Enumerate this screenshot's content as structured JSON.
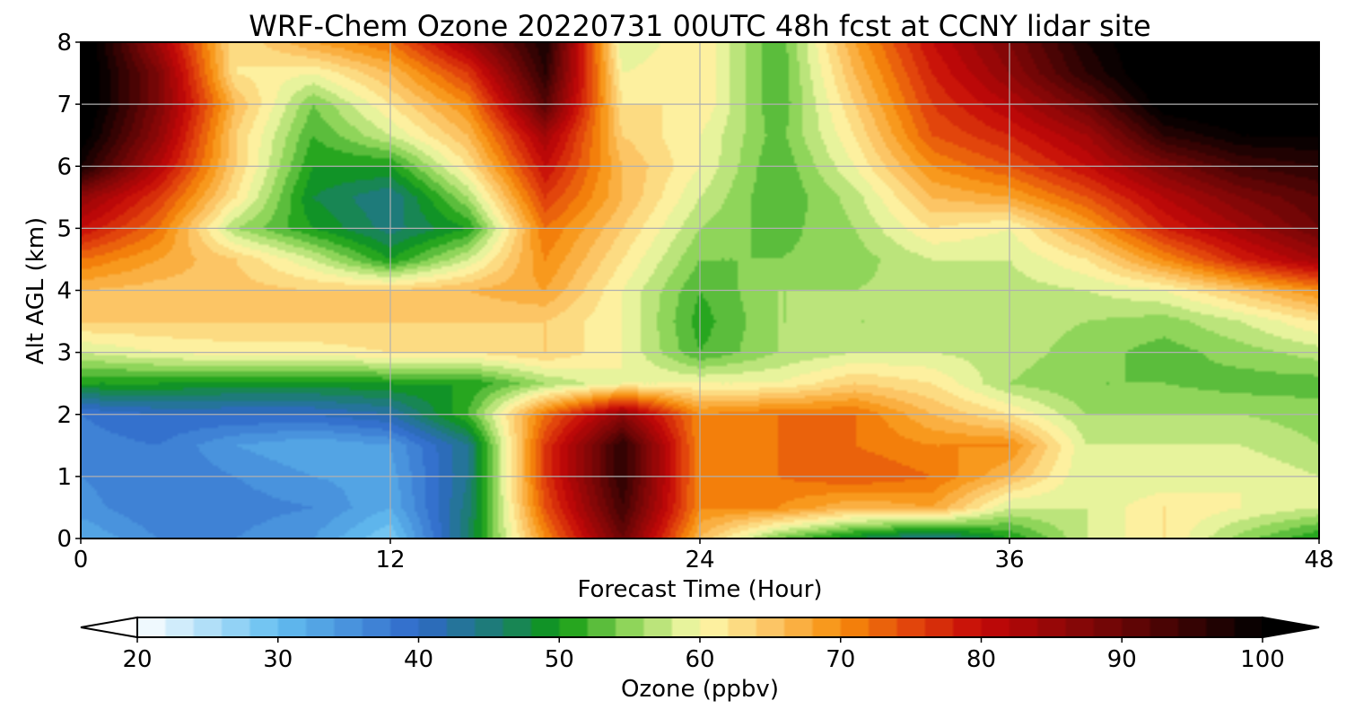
{
  "chart_data": {
    "type": "heatmap",
    "title": "WRF-Chem Ozone  20220731 00UTC 48h fcst at CCNY lidar site",
    "xlabel": "Forecast Time (Hour)",
    "ylabel": "Alt AGL (km)",
    "xlim": [
      0,
      48
    ],
    "ylim": [
      0,
      8
    ],
    "xticks": [
      0,
      12,
      24,
      36,
      48
    ],
    "yticks": [
      0,
      1,
      2,
      3,
      4,
      5,
      6,
      7,
      8
    ],
    "grid": true,
    "x": [
      0,
      3,
      6,
      9,
      12,
      15,
      18,
      21,
      24,
      27,
      30,
      33,
      36,
      39,
      42,
      45,
      48
    ],
    "y": [
      0,
      0.5,
      1,
      1.5,
      2,
      2.5,
      3,
      3.5,
      4,
      4.5,
      5,
      5.5,
      6,
      6.5,
      7,
      7.5,
      8
    ],
    "z": [
      [
        32,
        36,
        36,
        34,
        28,
        46,
        70,
        90,
        66,
        54,
        48,
        43,
        50,
        58,
        62,
        55,
        50
      ],
      [
        35,
        38,
        37,
        36,
        32,
        45,
        74,
        94,
        70,
        70,
        66,
        68,
        58,
        58,
        62,
        60,
        58
      ],
      [
        36,
        38,
        36,
        34,
        33,
        44,
        76,
        96,
        70,
        72,
        74,
        72,
        66,
        58,
        58,
        60,
        58
      ],
      [
        37,
        38,
        34,
        32,
        34,
        44,
        76,
        96,
        70,
        72,
        72,
        70,
        70,
        58,
        58,
        58,
        56
      ],
      [
        38,
        40,
        40,
        40,
        42,
        52,
        72,
        86,
        70,
        72,
        72,
        66,
        62,
        56,
        56,
        56,
        55
      ],
      [
        50,
        50,
        49,
        49,
        50,
        50,
        56,
        60,
        60,
        60,
        64,
        62,
        56,
        54,
        54,
        53,
        53
      ],
      [
        58,
        60,
        61,
        61,
        62,
        62,
        64,
        60,
        52,
        56,
        58,
        58,
        57,
        55,
        53,
        55,
        57
      ],
      [
        64,
        64,
        64,
        64,
        64,
        64,
        64,
        60,
        51,
        56,
        56,
        56,
        57,
        56,
        55,
        58,
        62
      ],
      [
        66,
        65,
        65,
        64,
        64,
        66,
        68,
        60,
        52,
        56,
        56,
        57,
        57,
        58,
        60,
        65,
        70
      ],
      [
        72,
        68,
        64,
        58,
        50,
        58,
        70,
        62,
        54,
        54,
        55,
        58,
        58,
        62,
        70,
        78,
        84
      ],
      [
        80,
        72,
        56,
        50,
        45,
        50,
        72,
        64,
        56,
        53,
        56,
        62,
        60,
        68,
        78,
        84,
        90
      ],
      [
        86,
        76,
        62,
        48,
        44,
        56,
        76,
        66,
        58,
        52,
        57,
        66,
        68,
        74,
        82,
        88,
        92
      ],
      [
        98,
        82,
        64,
        50,
        50,
        62,
        80,
        66,
        60,
        52,
        60,
        70,
        74,
        80,
        88,
        94,
        96
      ],
      [
        102,
        86,
        64,
        52,
        58,
        66,
        84,
        64,
        60,
        53,
        62,
        74,
        78,
        84,
        96,
        100,
        100
      ],
      [
        104,
        88,
        66,
        54,
        62,
        70,
        92,
        62,
        62,
        52,
        64,
        76,
        82,
        90,
        102,
        104,
        104
      ],
      [
        104,
        88,
        62,
        60,
        66,
        76,
        96,
        60,
        62,
        52,
        66,
        78,
        86,
        96,
        104,
        104,
        104
      ],
      [
        104,
        84,
        62,
        68,
        72,
        84,
        98,
        58,
        62,
        52,
        68,
        80,
        88,
        98,
        104,
        104,
        104
      ]
    ],
    "colorbar": {
      "label": "Ozone  (ppbv)",
      "min": 20,
      "max": 100,
      "ticks": [
        20,
        30,
        40,
        50,
        60,
        70,
        80,
        90,
        100
      ],
      "extend": "both",
      "stops": [
        {
          "v": 20,
          "color": "#ffffff"
        },
        {
          "v": 30,
          "color": "#63bef0"
        },
        {
          "v": 40,
          "color": "#2f68c9"
        },
        {
          "v": 46,
          "color": "#1b7f6a"
        },
        {
          "v": 50,
          "color": "#0d9a10"
        },
        {
          "v": 55,
          "color": "#8fd55a"
        },
        {
          "v": 60,
          "color": "#fdfbad"
        },
        {
          "v": 65,
          "color": "#fcc565"
        },
        {
          "v": 70,
          "color": "#f78e0b"
        },
        {
          "v": 75,
          "color": "#e2450c"
        },
        {
          "v": 80,
          "color": "#c40808"
        },
        {
          "v": 90,
          "color": "#6a0606"
        },
        {
          "v": 100,
          "color": "#000000"
        }
      ]
    }
  }
}
